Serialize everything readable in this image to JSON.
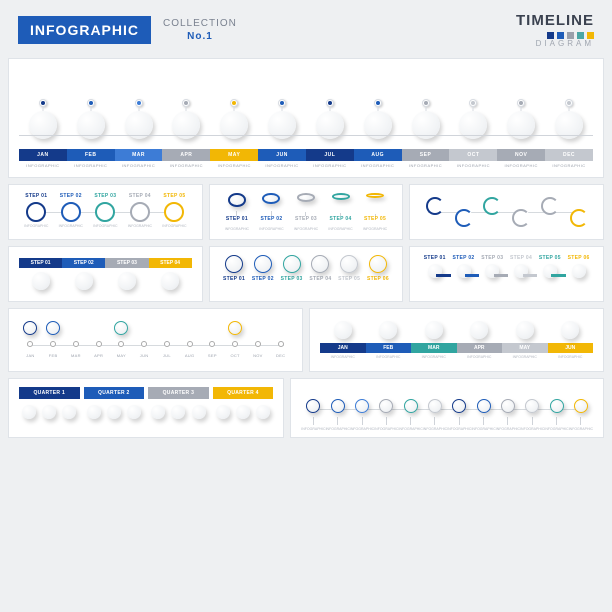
{
  "header": {
    "badge": "INFOGRAPHIC",
    "collection_label": "COLLECTION",
    "collection_no": "No.1",
    "timeline": "TIMELINE",
    "diagram": "DIAGRAM",
    "legend_colors": [
      "#143a8a",
      "#1e5cb8",
      "#9aa0ab",
      "#4aa6a6",
      "#f2b705"
    ]
  },
  "palette": {
    "blue_dark": "#143a8a",
    "blue": "#1e5cb8",
    "blue_light": "#3d7cd6",
    "grey": "#a6abb5",
    "grey_light": "#c4c8cf",
    "teal": "#31a5a0",
    "yellow": "#f2b705",
    "navy": "#0f2b66"
  },
  "months": [
    {
      "abbr": "JAN",
      "sub": "INFOGRAPHIC",
      "box": "#143a8a",
      "pin": "#143a8a"
    },
    {
      "abbr": "FEB",
      "sub": "INFOGRAPHIC",
      "box": "#1e5cb8",
      "pin": "#1e5cb8"
    },
    {
      "abbr": "MAR",
      "sub": "INFOGRAPHIC",
      "box": "#3d7cd6",
      "pin": "#3d7cd6"
    },
    {
      "abbr": "APR",
      "sub": "INFOGRAPHIC",
      "box": "#a6abb5",
      "pin": "#a6abb5"
    },
    {
      "abbr": "MAY",
      "sub": "INFOGRAPHIC",
      "box": "#f2b705",
      "pin": "#f2b705"
    },
    {
      "abbr": "JUN",
      "sub": "INFOGRAPHIC",
      "box": "#1e5cb8",
      "pin": "#1e5cb8"
    },
    {
      "abbr": "JUL",
      "sub": "INFOGRAPHIC",
      "box": "#143a8a",
      "pin": "#143a8a"
    },
    {
      "abbr": "AUG",
      "sub": "INFOGRAPHIC",
      "box": "#1e5cb8",
      "pin": "#1e5cb8"
    },
    {
      "abbr": "SEP",
      "sub": "INFOGRAPHIC",
      "box": "#a6abb5",
      "pin": "#a6abb5"
    },
    {
      "abbr": "OCT",
      "sub": "INFOGRAPHIC",
      "box": "#c4c8cf",
      "pin": "#c4c8cf"
    },
    {
      "abbr": "NOV",
      "sub": "INFOGRAPHIC",
      "box": "#a6abb5",
      "pin": "#a6abb5"
    },
    {
      "abbr": "DEC",
      "sub": "INFOGRAPHIC",
      "box": "#c4c8cf",
      "pin": "#c4c8cf"
    }
  ],
  "panel_A": {
    "steps": [
      {
        "label": "STEP 01",
        "color": "#143a8a"
      },
      {
        "label": "STEP 02",
        "color": "#1e5cb8"
      },
      {
        "label": "STEP 03",
        "color": "#31a5a0"
      },
      {
        "label": "STEP 04",
        "color": "#a6abb5"
      },
      {
        "label": "STEP 05",
        "color": "#f2b705"
      }
    ]
  },
  "panel_B": {
    "steps": [
      {
        "label": "STEP 01",
        "color": "#143a8a"
      },
      {
        "label": "STEP 02",
        "color": "#1e5cb8"
      },
      {
        "label": "STEP 03",
        "color": "#a6abb5"
      },
      {
        "label": "STEP 04",
        "color": "#31a5a0"
      },
      {
        "label": "STEP 05",
        "color": "#f2b705"
      }
    ]
  },
  "panel_C": {
    "steps": [
      {
        "color": "#143a8a"
      },
      {
        "color": "#1e5cb8"
      },
      {
        "color": "#31a5a0"
      },
      {
        "color": "#a6abb5"
      },
      {
        "color": "#a6abb5"
      },
      {
        "color": "#f2b705"
      }
    ]
  },
  "panel_D": {
    "labels": [
      "STEP 01",
      "STEP 02",
      "STEP 03",
      "STEP 04"
    ],
    "colors": [
      "#143a8a",
      "#1e5cb8",
      "#a6abb5",
      "#f2b705"
    ]
  },
  "panel_E": {
    "labels": [
      "STEP 01",
      "STEP 02",
      "STEP 03",
      "STEP 04",
      "STEP 05",
      "STEP 06"
    ],
    "colors": [
      "#143a8a",
      "#1e5cb8",
      "#31a5a0",
      "#a6abb5",
      "#c4c8cf",
      "#f2b705"
    ]
  },
  "panel_F": {
    "labels": [
      "STEP 01",
      "STEP 02",
      "STEP 03",
      "STEP 04",
      "STEP 05",
      "STEP 06"
    ],
    "colors": [
      "#143a8a",
      "#1e5cb8",
      "#a6abb5",
      "#c4c8cf",
      "#31a5a0",
      "#f2b705"
    ]
  },
  "panel_G": {
    "months": [
      "JAN",
      "FEB",
      "MAR",
      "APR",
      "MAY",
      "JUN",
      "JUL",
      "AUG",
      "SEP",
      "OCT",
      "NOV",
      "DEC"
    ],
    "accent_idx": [
      0,
      1,
      4,
      9
    ],
    "accent_colors": [
      "#143a8a",
      "#1e5cb8",
      "#31a5a0",
      "#f2b705"
    ]
  },
  "panel_H": {
    "months": [
      "JAN",
      "FEB",
      "MAR",
      "APR",
      "MAY",
      "JUN"
    ],
    "colors": [
      "#143a8a",
      "#1e5cb8",
      "#31a5a0",
      "#a6abb5",
      "#c4c8cf",
      "#f2b705"
    ]
  },
  "panel_Q": {
    "quarters": [
      {
        "label": "QUARTER 1",
        "color": "#143a8a"
      },
      {
        "label": "QUARTER 2",
        "color": "#1e5cb8"
      },
      {
        "label": "QUARTER 3",
        "color": "#a6abb5"
      },
      {
        "label": "QUARTER 4",
        "color": "#f2b705"
      }
    ]
  },
  "panel_R": {
    "count": 12,
    "colors": [
      "#143a8a",
      "#1e5cb8",
      "#3d7cd6",
      "#a6abb5",
      "#31a5a0",
      "#c4c8cf",
      "#143a8a",
      "#1e5cb8",
      "#a6abb5",
      "#c4c8cf",
      "#31a5a0",
      "#f2b705"
    ]
  },
  "filler_text": "INFOGRAPHIC"
}
